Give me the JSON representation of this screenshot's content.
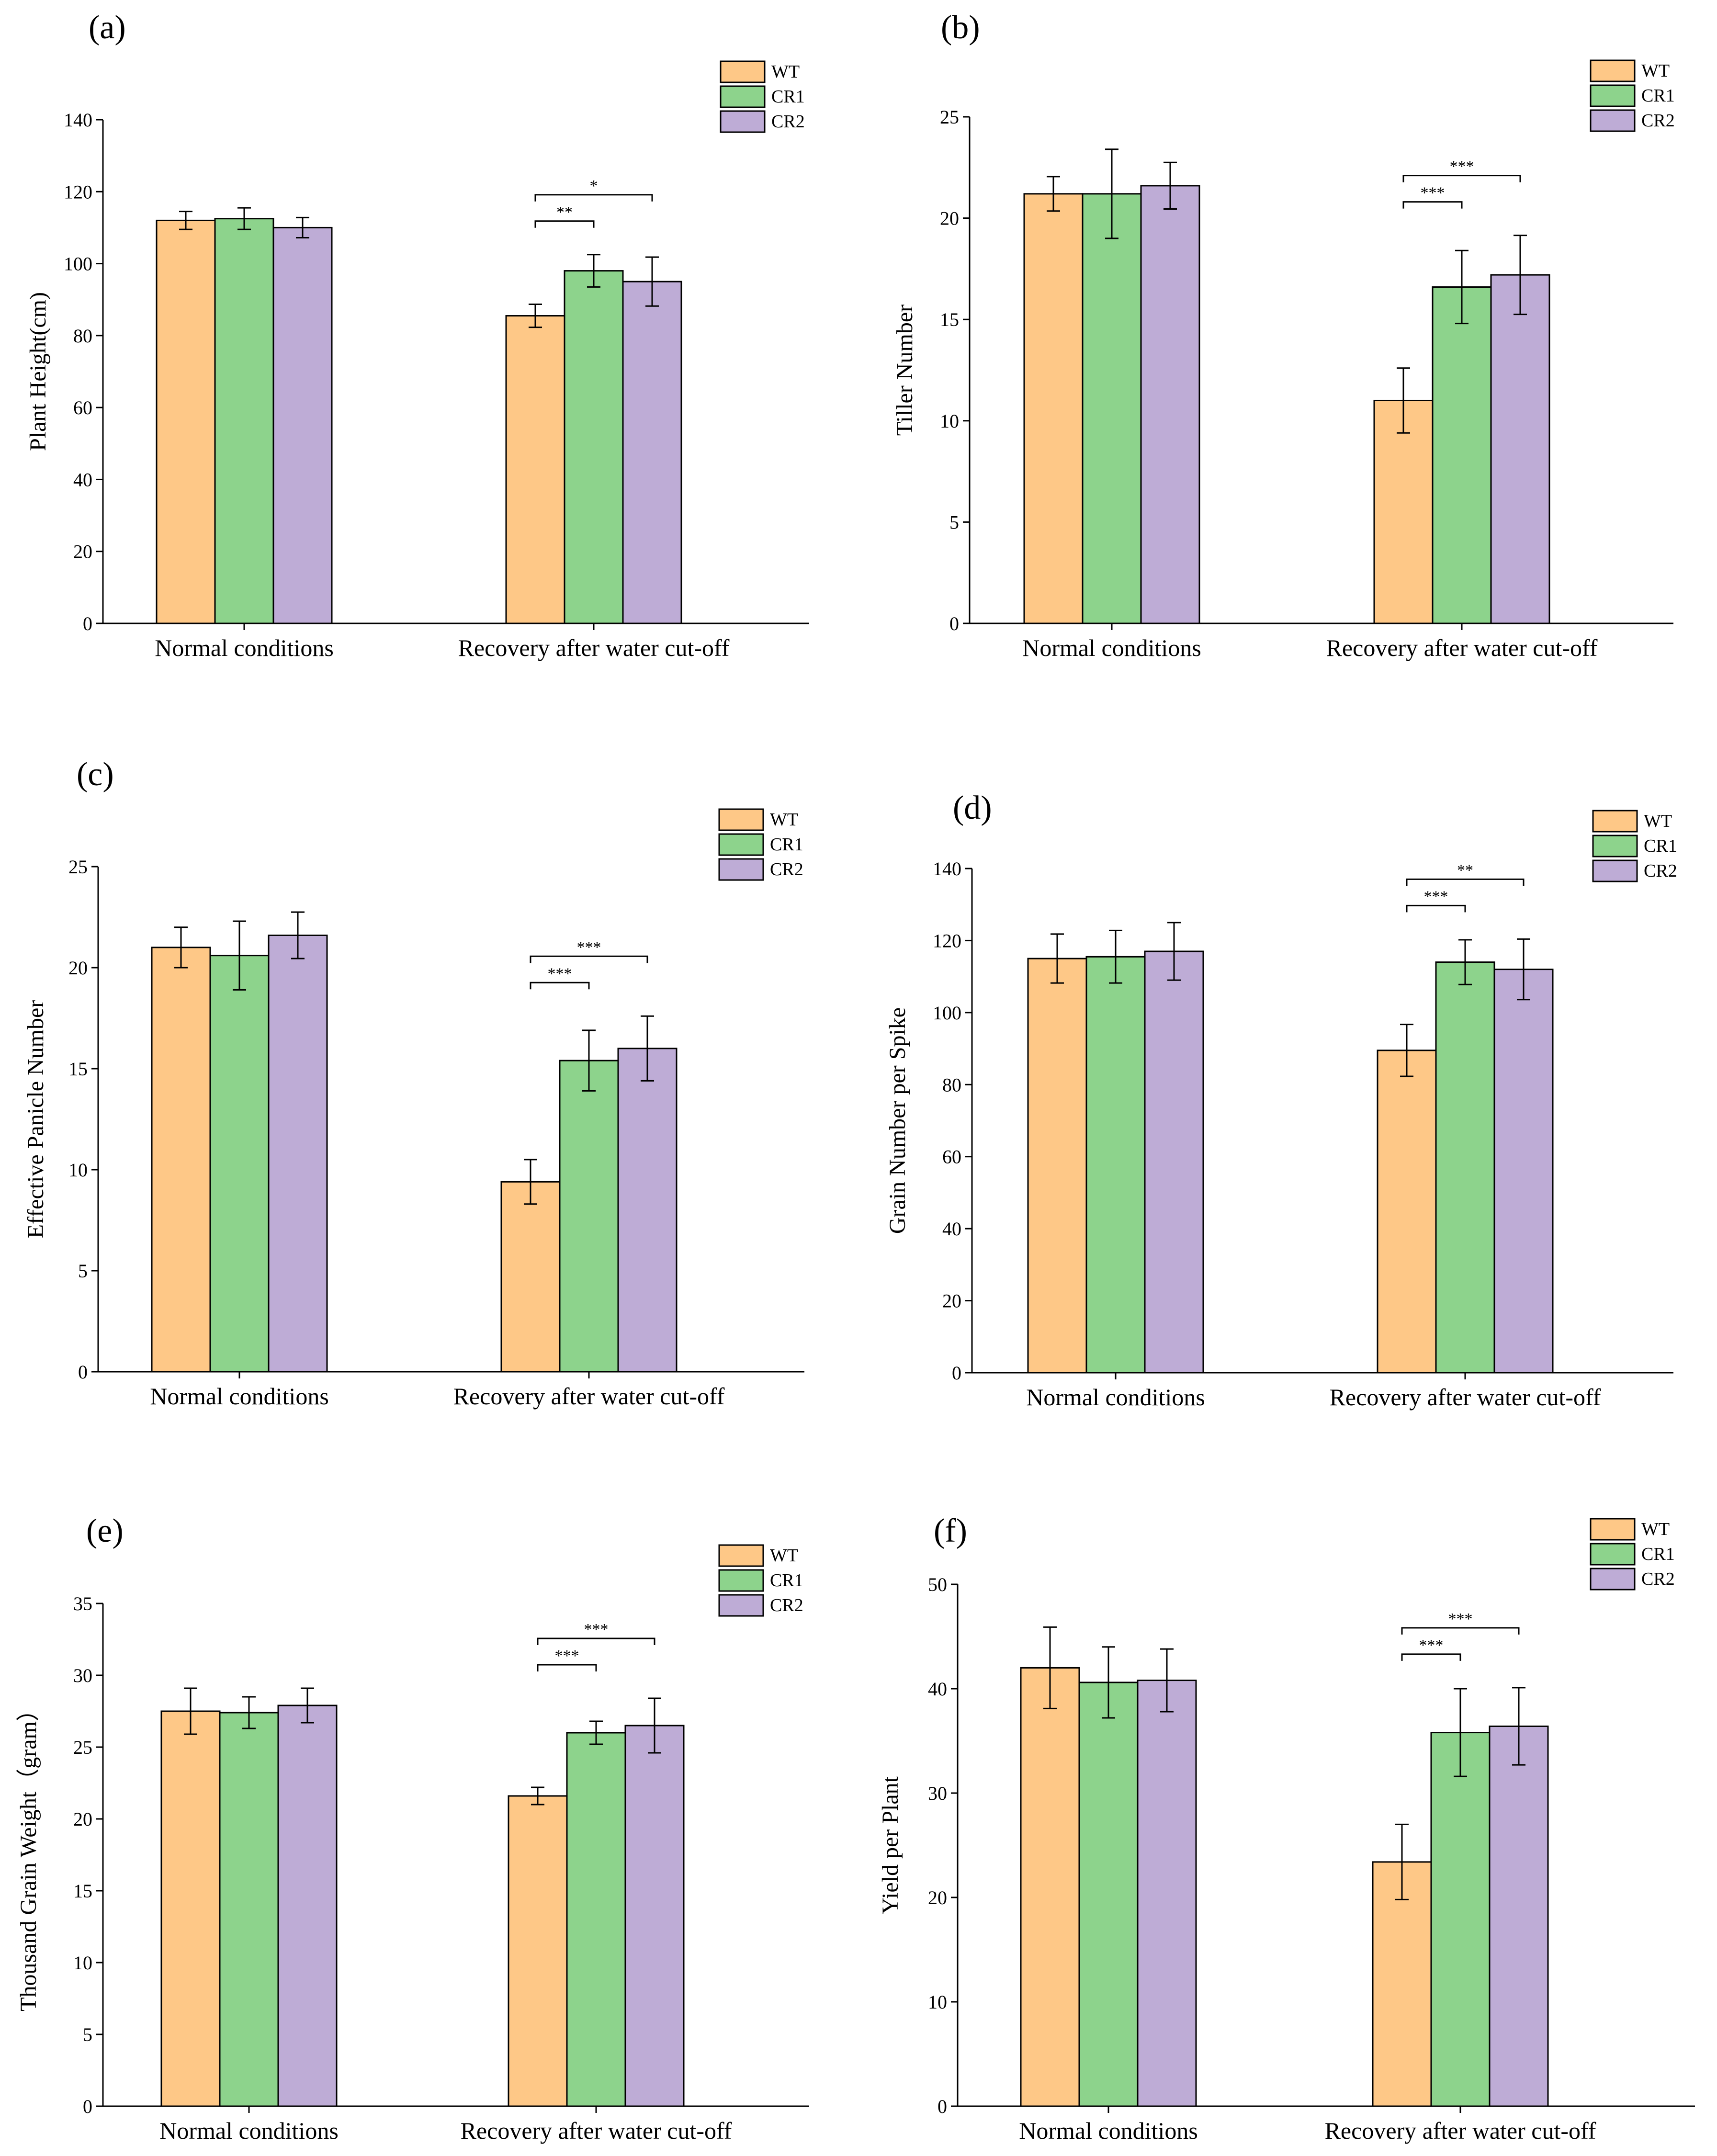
{
  "legend": {
    "series": [
      "WT",
      "CR1",
      "CR2"
    ],
    "colors": [
      "#FEC887",
      "#8DD38C",
      "#BEACD6"
    ]
  },
  "chart_data": [
    {
      "type": "bar",
      "panel": "(a)",
      "ylabel": "Plant Height(cm)",
      "categories": [
        "Normal conditions",
        "Recovery after water cut-off"
      ],
      "yticks": [
        0,
        20,
        40,
        60,
        80,
        100,
        120,
        140
      ],
      "ylim": [
        0,
        140
      ],
      "series": [
        {
          "name": "WT",
          "values": [
            112,
            85.5
          ],
          "errors": [
            2.5,
            3.2
          ]
        },
        {
          "name": "CR1",
          "values": [
            112.5,
            98
          ],
          "errors": [
            3.0,
            4.5
          ]
        },
        {
          "name": "CR2",
          "values": [
            110,
            95
          ],
          "errors": [
            2.8,
            6.8
          ]
        }
      ],
      "significance": [
        {
          "from": 0,
          "to": 1,
          "category": 1,
          "label": "**"
        },
        {
          "from": 0,
          "to": 2,
          "category": 1,
          "label": "*"
        }
      ]
    },
    {
      "type": "bar",
      "panel": "(b)",
      "ylabel": "Tiller Number",
      "categories": [
        "Normal conditions",
        "Recovery after water cut-off"
      ],
      "yticks": [
        0,
        5,
        10,
        15,
        20,
        25
      ],
      "ylim": [
        0,
        25
      ],
      "series": [
        {
          "name": "WT",
          "values": [
            21.2,
            11
          ],
          "errors": [
            0.85,
            1.6
          ]
        },
        {
          "name": "CR1",
          "values": [
            21.2,
            16.6
          ],
          "errors": [
            2.2,
            1.8
          ]
        },
        {
          "name": "CR2",
          "values": [
            21.6,
            17.2
          ],
          "errors": [
            1.15,
            1.95
          ]
        }
      ],
      "significance": [
        {
          "from": 0,
          "to": 1,
          "category": 1,
          "label": "***"
        },
        {
          "from": 0,
          "to": 2,
          "category": 1,
          "label": "***"
        }
      ]
    },
    {
      "type": "bar",
      "panel": "(c)",
      "ylabel": "Effective Panicle Number",
      "categories": [
        "Normal conditions",
        "Recovery after water cut-off"
      ],
      "yticks": [
        0,
        5,
        10,
        15,
        20,
        25
      ],
      "ylim": [
        0,
        25
      ],
      "series": [
        {
          "name": "WT",
          "values": [
            21,
            9.4
          ],
          "errors": [
            1.0,
            1.1
          ]
        },
        {
          "name": "CR1",
          "values": [
            20.6,
            15.4
          ],
          "errors": [
            1.7,
            1.5
          ]
        },
        {
          "name": "CR2",
          "values": [
            21.6,
            16
          ],
          "errors": [
            1.15,
            1.6
          ]
        }
      ],
      "significance": [
        {
          "from": 0,
          "to": 1,
          "category": 1,
          "label": "***"
        },
        {
          "from": 0,
          "to": 2,
          "category": 1,
          "label": "***"
        }
      ]
    },
    {
      "type": "bar",
      "panel": "(d)",
      "ylabel": "Grain Number per Spike",
      "categories": [
        "Normal conditions",
        "Recovery after water cut-off"
      ],
      "yticks": [
        0,
        20,
        40,
        60,
        80,
        100,
        120,
        140
      ],
      "ylim": [
        0,
        140
      ],
      "series": [
        {
          "name": "WT",
          "values": [
            115,
            89.5
          ],
          "errors": [
            6.8,
            7.2
          ]
        },
        {
          "name": "CR1",
          "values": [
            115.5,
            114
          ],
          "errors": [
            7.3,
            6.2
          ]
        },
        {
          "name": "CR2",
          "values": [
            117,
            112
          ],
          "errors": [
            8.0,
            8.4
          ]
        }
      ],
      "significance": [
        {
          "from": 0,
          "to": 1,
          "category": 1,
          "label": "***"
        },
        {
          "from": 0,
          "to": 2,
          "category": 1,
          "label": "**"
        }
      ]
    },
    {
      "type": "bar",
      "panel": "(e)",
      "ylabel": "Thousand Grain Weight（gram）",
      "categories": [
        "Normal conditions",
        "Recovery after water cut-off"
      ],
      "yticks": [
        0,
        5,
        10,
        15,
        20,
        25,
        30,
        35
      ],
      "ylim": [
        0,
        35
      ],
      "series": [
        {
          "name": "WT",
          "values": [
            27.5,
            21.6
          ],
          "errors": [
            1.6,
            0.6
          ]
        },
        {
          "name": "CR1",
          "values": [
            27.4,
            26
          ],
          "errors": [
            1.1,
            0.8
          ]
        },
        {
          "name": "CR2",
          "values": [
            27.9,
            26.5
          ],
          "errors": [
            1.2,
            1.9
          ]
        }
      ],
      "significance": [
        {
          "from": 0,
          "to": 1,
          "category": 1,
          "label": "***"
        },
        {
          "from": 0,
          "to": 2,
          "category": 1,
          "label": "***"
        }
      ]
    },
    {
      "type": "bar",
      "panel": "(f)",
      "ylabel": "Yield per Plant",
      "categories": [
        "Normal conditions",
        "Recovery after water cut-off"
      ],
      "yticks": [
        0,
        10,
        20,
        30,
        40,
        50
      ],
      "ylim": [
        0,
        50
      ],
      "series": [
        {
          "name": "WT",
          "values": [
            42,
            23.4
          ],
          "errors": [
            3.9,
            3.6
          ]
        },
        {
          "name": "CR1",
          "values": [
            40.6,
            35.8
          ],
          "errors": [
            3.4,
            4.2
          ]
        },
        {
          "name": "CR2",
          "values": [
            40.8,
            36.4
          ],
          "errors": [
            3.0,
            3.7
          ]
        }
      ],
      "significance": [
        {
          "from": 0,
          "to": 1,
          "category": 1,
          "label": "***"
        },
        {
          "from": 0,
          "to": 2,
          "category": 1,
          "label": "***"
        }
      ]
    }
  ]
}
